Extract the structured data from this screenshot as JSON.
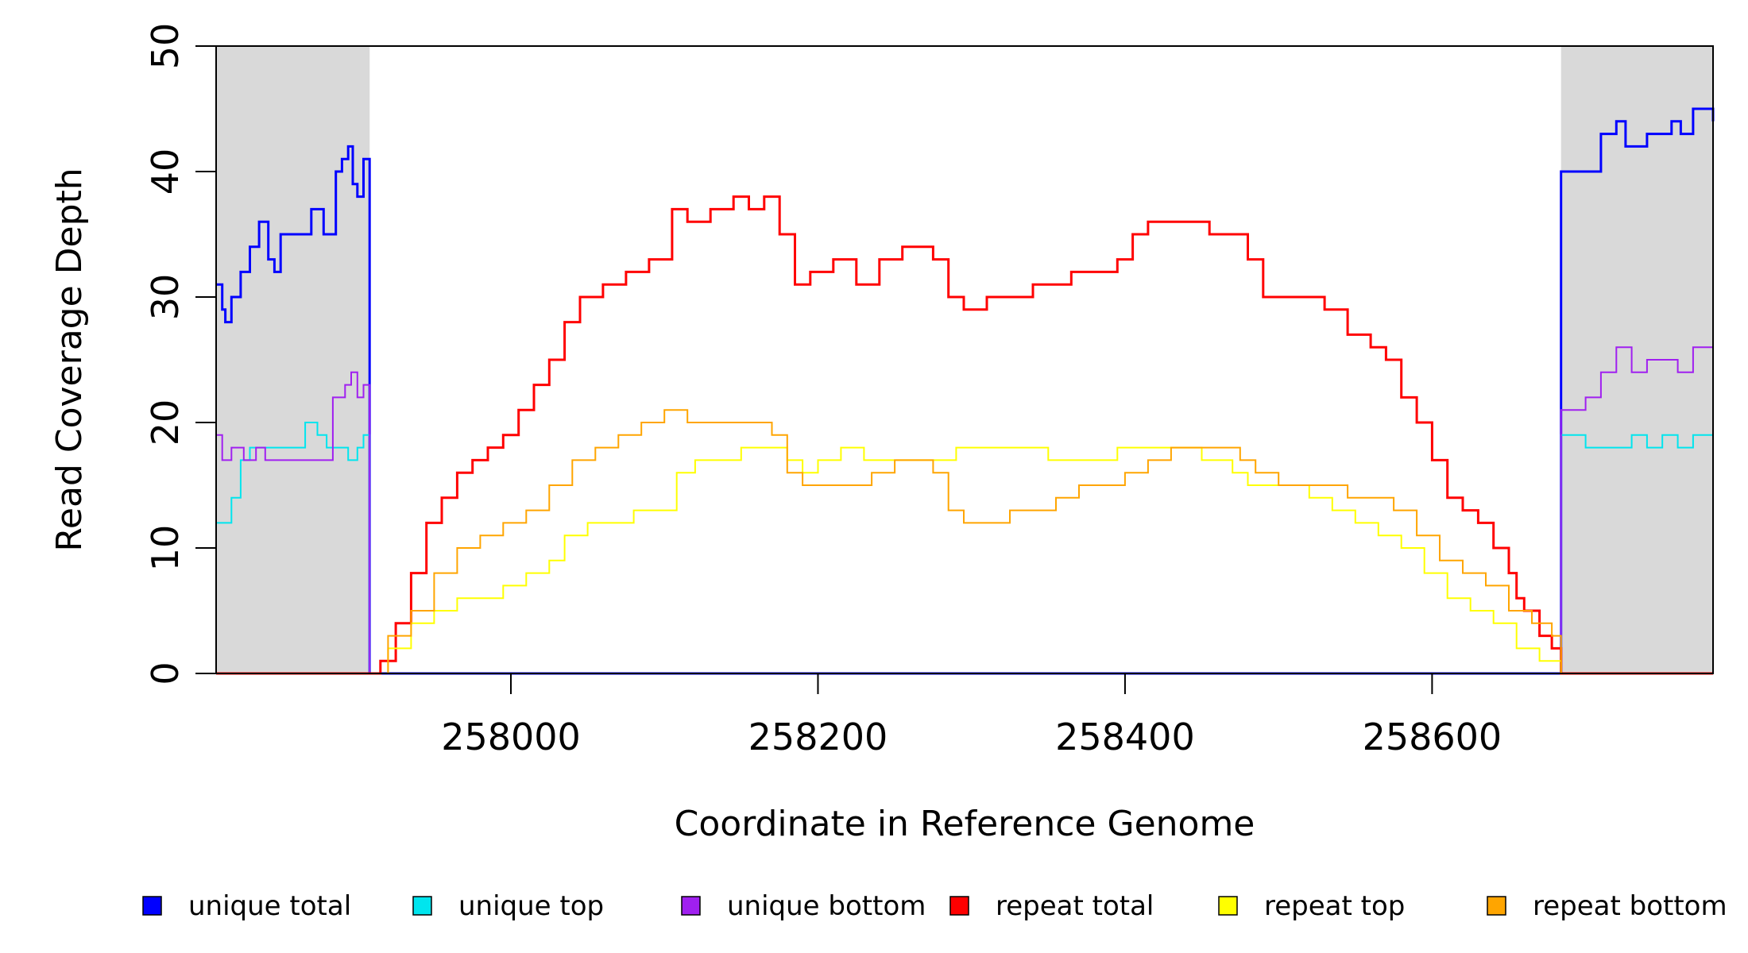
{
  "chart_data": {
    "type": "line",
    "title": "",
    "xlabel": "Coordinate in Reference Genome",
    "ylabel": "Read Coverage Depth",
    "xlim": [
      257808,
      258783
    ],
    "ylim": [
      0,
      50
    ],
    "x_ticks": [
      258000,
      258200,
      258400,
      258600
    ],
    "y_ticks": [
      0,
      10,
      20,
      30,
      40,
      50
    ],
    "grid": false,
    "legend_position": "bottom",
    "shaded_regions": [
      {
        "x_start": 257808,
        "x_end": 257908,
        "color": "#d9d9d9"
      },
      {
        "x_start": 258684,
        "x_end": 258783,
        "color": "#d9d9d9"
      }
    ],
    "series": [
      {
        "name": "unique total",
        "color": "#0000ff",
        "points": [
          [
            257808,
            31
          ],
          [
            257812,
            29
          ],
          [
            257814,
            28
          ],
          [
            257818,
            30
          ],
          [
            257824,
            32
          ],
          [
            257830,
            34
          ],
          [
            257836,
            36
          ],
          [
            257842,
            33
          ],
          [
            257846,
            32
          ],
          [
            257850,
            35
          ],
          [
            257860,
            35
          ],
          [
            257866,
            35
          ],
          [
            257870,
            37
          ],
          [
            257878,
            35
          ],
          [
            257886,
            40
          ],
          [
            257890,
            41
          ],
          [
            257894,
            42
          ],
          [
            257897,
            39
          ],
          [
            257900,
            38
          ],
          [
            257904,
            41
          ],
          [
            257908,
            41
          ],
          [
            257908,
            0
          ],
          [
            258684,
            0
          ],
          [
            258684,
            40
          ],
          [
            258700,
            40
          ],
          [
            258710,
            43
          ],
          [
            258720,
            44
          ],
          [
            258726,
            42
          ],
          [
            258740,
            43
          ],
          [
            258756,
            44
          ],
          [
            258762,
            43
          ],
          [
            258770,
            45
          ],
          [
            258783,
            44
          ]
        ]
      },
      {
        "name": "unique top",
        "color": "#00e5ee",
        "points": [
          [
            257808,
            12
          ],
          [
            257818,
            14
          ],
          [
            257824,
            17
          ],
          [
            257830,
            18
          ],
          [
            257840,
            18
          ],
          [
            257860,
            18
          ],
          [
            257866,
            20
          ],
          [
            257874,
            19
          ],
          [
            257880,
            18
          ],
          [
            257888,
            18
          ],
          [
            257894,
            17
          ],
          [
            257900,
            18
          ],
          [
            257904,
            19
          ],
          [
            257908,
            19
          ],
          [
            257908,
            0
          ],
          [
            258684,
            0
          ],
          [
            258684,
            19
          ],
          [
            258700,
            18
          ],
          [
            258710,
            18
          ],
          [
            258720,
            18
          ],
          [
            258730,
            19
          ],
          [
            258740,
            18
          ],
          [
            258750,
            19
          ],
          [
            258760,
            18
          ],
          [
            258770,
            19
          ],
          [
            258783,
            19
          ]
        ]
      },
      {
        "name": "unique bottom",
        "color": "#a020f0",
        "points": [
          [
            257808,
            19
          ],
          [
            257812,
            17
          ],
          [
            257818,
            18
          ],
          [
            257826,
            17
          ],
          [
            257834,
            18
          ],
          [
            257840,
            17
          ],
          [
            257860,
            17
          ],
          [
            257880,
            17
          ],
          [
            257884,
            22
          ],
          [
            257892,
            23
          ],
          [
            257896,
            24
          ],
          [
            257900,
            22
          ],
          [
            257904,
            23
          ],
          [
            257908,
            22
          ],
          [
            257908,
            0
          ],
          [
            258684,
            0
          ],
          [
            258684,
            21
          ],
          [
            258700,
            22
          ],
          [
            258710,
            24
          ],
          [
            258720,
            26
          ],
          [
            258730,
            24
          ],
          [
            258740,
            25
          ],
          [
            258750,
            25
          ],
          [
            258760,
            24
          ],
          [
            258770,
            26
          ],
          [
            258783,
            25
          ]
        ]
      },
      {
        "name": "repeat total",
        "color": "#ff0000",
        "points": [
          [
            257808,
            0
          ],
          [
            257908,
            0
          ],
          [
            257915,
            1
          ],
          [
            257925,
            4
          ],
          [
            257935,
            8
          ],
          [
            257945,
            12
          ],
          [
            257955,
            14
          ],
          [
            257965,
            16
          ],
          [
            257975,
            17
          ],
          [
            257985,
            18
          ],
          [
            257995,
            19
          ],
          [
            258005,
            21
          ],
          [
            258015,
            23
          ],
          [
            258025,
            25
          ],
          [
            258035,
            28
          ],
          [
            258045,
            30
          ],
          [
            258060,
            31
          ],
          [
            258075,
            32
          ],
          [
            258090,
            33
          ],
          [
            258100,
            33
          ],
          [
            258105,
            37
          ],
          [
            258115,
            36
          ],
          [
            258130,
            37
          ],
          [
            258145,
            38
          ],
          [
            258155,
            37
          ],
          [
            258165,
            38
          ],
          [
            258175,
            35
          ],
          [
            258185,
            31
          ],
          [
            258195,
            32
          ],
          [
            258210,
            33
          ],
          [
            258225,
            31
          ],
          [
            258240,
            33
          ],
          [
            258255,
            34
          ],
          [
            258265,
            34
          ],
          [
            258275,
            33
          ],
          [
            258285,
            30
          ],
          [
            258295,
            29
          ],
          [
            258310,
            30
          ],
          [
            258325,
            30
          ],
          [
            258340,
            31
          ],
          [
            258355,
            31
          ],
          [
            258365,
            32
          ],
          [
            258385,
            32
          ],
          [
            258395,
            33
          ],
          [
            258405,
            35
          ],
          [
            258415,
            36
          ],
          [
            258425,
            36
          ],
          [
            258440,
            36
          ],
          [
            258455,
            35
          ],
          [
            258470,
            35
          ],
          [
            258480,
            33
          ],
          [
            258490,
            30
          ],
          [
            258505,
            30
          ],
          [
            258515,
            30
          ],
          [
            258530,
            29
          ],
          [
            258545,
            27
          ],
          [
            258560,
            26
          ],
          [
            258570,
            25
          ],
          [
            258580,
            22
          ],
          [
            258590,
            20
          ],
          [
            258600,
            17
          ],
          [
            258610,
            14
          ],
          [
            258620,
            13
          ],
          [
            258630,
            12
          ],
          [
            258640,
            10
          ],
          [
            258650,
            8
          ],
          [
            258655,
            6
          ],
          [
            258660,
            5
          ],
          [
            258670,
            3
          ],
          [
            258678,
            2
          ],
          [
            258684,
            0
          ],
          [
            258783,
            0
          ]
        ]
      },
      {
        "name": "repeat top",
        "color": "#ffff00",
        "points": [
          [
            257808,
            0
          ],
          [
            257908,
            0
          ],
          [
            257920,
            2
          ],
          [
            257935,
            4
          ],
          [
            257950,
            5
          ],
          [
            257965,
            6
          ],
          [
            257980,
            6
          ],
          [
            257995,
            7
          ],
          [
            258010,
            8
          ],
          [
            258025,
            9
          ],
          [
            258035,
            11
          ],
          [
            258050,
            12
          ],
          [
            258065,
            12
          ],
          [
            258080,
            13
          ],
          [
            258095,
            13
          ],
          [
            258102,
            13
          ],
          [
            258108,
            16
          ],
          [
            258120,
            17
          ],
          [
            258135,
            17
          ],
          [
            258150,
            18
          ],
          [
            258165,
            18
          ],
          [
            258180,
            17
          ],
          [
            258190,
            16
          ],
          [
            258200,
            17
          ],
          [
            258215,
            18
          ],
          [
            258230,
            17
          ],
          [
            258250,
            17
          ],
          [
            258270,
            17
          ],
          [
            258290,
            18
          ],
          [
            258310,
            18
          ],
          [
            258330,
            18
          ],
          [
            258350,
            17
          ],
          [
            258365,
            17
          ],
          [
            258380,
            17
          ],
          [
            258395,
            18
          ],
          [
            258410,
            18
          ],
          [
            258430,
            18
          ],
          [
            258450,
            17
          ],
          [
            258470,
            16
          ],
          [
            258480,
            15
          ],
          [
            258490,
            15
          ],
          [
            258505,
            15
          ],
          [
            258520,
            14
          ],
          [
            258535,
            13
          ],
          [
            258550,
            12
          ],
          [
            258565,
            11
          ],
          [
            258580,
            10
          ],
          [
            258595,
            8
          ],
          [
            258610,
            6
          ],
          [
            258625,
            5
          ],
          [
            258640,
            4
          ],
          [
            258655,
            2
          ],
          [
            258670,
            1
          ],
          [
            258684,
            0
          ],
          [
            258783,
            0
          ]
        ]
      },
      {
        "name": "repeat bottom",
        "color": "#ffa500",
        "points": [
          [
            257808,
            0
          ],
          [
            257908,
            0
          ],
          [
            257920,
            3
          ],
          [
            257935,
            5
          ],
          [
            257950,
            8
          ],
          [
            257965,
            10
          ],
          [
            257980,
            11
          ],
          [
            257995,
            12
          ],
          [
            258010,
            13
          ],
          [
            258025,
            15
          ],
          [
            258040,
            17
          ],
          [
            258055,
            18
          ],
          [
            258070,
            19
          ],
          [
            258085,
            20
          ],
          [
            258100,
            21
          ],
          [
            258115,
            20
          ],
          [
            258130,
            20
          ],
          [
            258145,
            20
          ],
          [
            258160,
            20
          ],
          [
            258170,
            19
          ],
          [
            258180,
            16
          ],
          [
            258190,
            15
          ],
          [
            258205,
            15
          ],
          [
            258220,
            15
          ],
          [
            258235,
            16
          ],
          [
            258250,
            17
          ],
          [
            258265,
            17
          ],
          [
            258275,
            16
          ],
          [
            258285,
            13
          ],
          [
            258295,
            12
          ],
          [
            258310,
            12
          ],
          [
            258325,
            13
          ],
          [
            258340,
            13
          ],
          [
            258355,
            14
          ],
          [
            258370,
            15
          ],
          [
            258385,
            15
          ],
          [
            258400,
            16
          ],
          [
            258415,
            17
          ],
          [
            258430,
            18
          ],
          [
            258445,
            18
          ],
          [
            258460,
            18
          ],
          [
            258475,
            17
          ],
          [
            258485,
            16
          ],
          [
            258500,
            15
          ],
          [
            258515,
            15
          ],
          [
            258530,
            15
          ],
          [
            258545,
            14
          ],
          [
            258560,
            14
          ],
          [
            258575,
            13
          ],
          [
            258590,
            11
          ],
          [
            258605,
            9
          ],
          [
            258620,
            8
          ],
          [
            258635,
            7
          ],
          [
            258650,
            5
          ],
          [
            258665,
            4
          ],
          [
            258678,
            3
          ],
          [
            258684,
            0
          ],
          [
            258783,
            0
          ]
        ]
      }
    ]
  }
}
